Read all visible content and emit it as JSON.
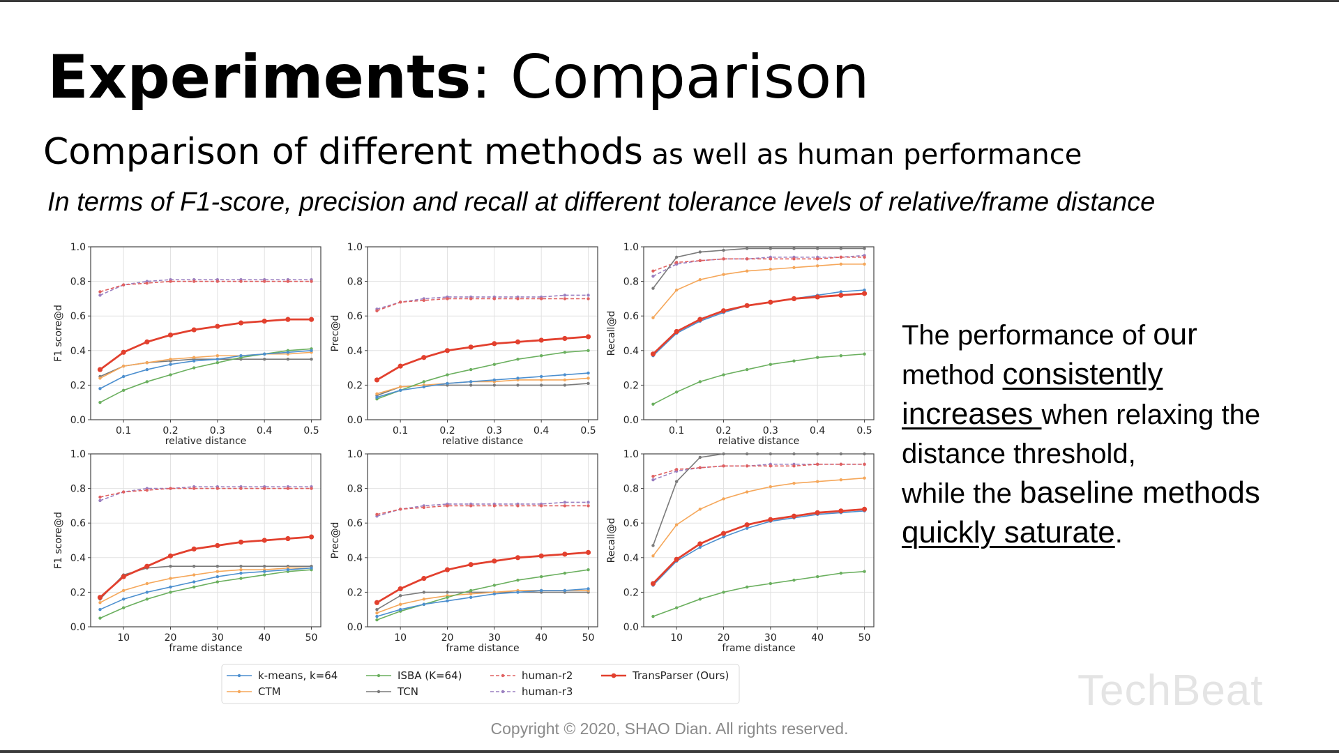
{
  "slide": {
    "title_bold": "Experiments",
    "title_rest": ": Comparison",
    "subtitle_main": "Comparison of different methods",
    "subtitle_small": " as well as human performance",
    "description": "In terms of F1-score, precision and recall at different tolerance levels of relative/frame distance",
    "side_text": {
      "p1": "The performance of ",
      "p2": "our",
      "p3": "method ",
      "p4": "consistently",
      "p5": "increases ",
      "p6": "when relaxing the distance threshold,",
      "p7": "while the ",
      "p8": "baseline methods",
      "p9": "quickly saturate",
      "p10": "."
    },
    "copyright": "Copyright © 2020, SHAO Dian. All rights reserved.",
    "watermark": "TechBeat"
  },
  "colors": {
    "kmeans": "#4c8fcf",
    "ctm": "#f5a75a",
    "isba": "#6aaf5e",
    "tcn": "#7a7a7a",
    "human_r2": "#e06060",
    "human_r3": "#9a7fc0",
    "transparser": "#e2402e"
  },
  "chart_data": {
    "legend": [
      {
        "key": "kmeans",
        "label": "k-means, k=64",
        "dashed": false
      },
      {
        "key": "ctm",
        "label": "CTM",
        "dashed": false
      },
      {
        "key": "isba",
        "label": "ISBA (K=64)",
        "dashed": false
      },
      {
        "key": "tcn",
        "label": "TCN",
        "dashed": false
      },
      {
        "key": "human_r2",
        "label": "human-r2",
        "dashed": true
      },
      {
        "key": "human_r3",
        "label": "human-r3",
        "dashed": true
      },
      {
        "key": "transparser",
        "label": "TransParser (Ours)",
        "dashed": false
      }
    ],
    "charts": [
      {
        "type": "line",
        "ylabel": "F1 score@d",
        "xlabel": "relative distance",
        "x": [
          0.05,
          0.1,
          0.15,
          0.2,
          0.25,
          0.3,
          0.35,
          0.4,
          0.45,
          0.5
        ],
        "xlim": [
          0.03,
          0.52
        ],
        "xticks": [
          0.1,
          0.2,
          0.3,
          0.4,
          0.5
        ],
        "xtick_labels": [
          "0.1",
          "0.2",
          "0.3",
          "0.4",
          "0.5"
        ],
        "ylim": [
          0,
          1
        ],
        "yticks": [
          0.0,
          0.2,
          0.4,
          0.6,
          0.8,
          1.0
        ],
        "ytick_labels": [
          "0.0",
          "0.2",
          "0.4",
          "0.6",
          "0.8",
          "1.0"
        ],
        "series": [
          {
            "key": "kmeans",
            "values": [
              0.18,
              0.25,
              0.29,
              0.32,
              0.34,
              0.35,
              0.37,
              0.38,
              0.39,
              0.4
            ]
          },
          {
            "key": "ctm",
            "values": [
              0.24,
              0.31,
              0.33,
              0.35,
              0.36,
              0.37,
              0.37,
              0.38,
              0.38,
              0.39
            ]
          },
          {
            "key": "isba",
            "values": [
              0.1,
              0.17,
              0.22,
              0.26,
              0.3,
              0.33,
              0.36,
              0.38,
              0.4,
              0.41
            ]
          },
          {
            "key": "tcn",
            "values": [
              0.25,
              0.31,
              0.33,
              0.34,
              0.35,
              0.35,
              0.35,
              0.35,
              0.35,
              0.35
            ]
          },
          {
            "key": "human_r2",
            "values": [
              0.74,
              0.78,
              0.79,
              0.8,
              0.8,
              0.8,
              0.8,
              0.8,
              0.8,
              0.8
            ]
          },
          {
            "key": "human_r3",
            "values": [
              0.72,
              0.78,
              0.8,
              0.81,
              0.81,
              0.81,
              0.81,
              0.81,
              0.81,
              0.81
            ]
          },
          {
            "key": "transparser",
            "values": [
              0.29,
              0.39,
              0.45,
              0.49,
              0.52,
              0.54,
              0.56,
              0.57,
              0.58,
              0.58
            ]
          }
        ]
      },
      {
        "type": "line",
        "ylabel": "Prec@d",
        "xlabel": "relative distance",
        "x": [
          0.05,
          0.1,
          0.15,
          0.2,
          0.25,
          0.3,
          0.35,
          0.4,
          0.45,
          0.5
        ],
        "xlim": [
          0.03,
          0.52
        ],
        "xticks": [
          0.1,
          0.2,
          0.3,
          0.4,
          0.5
        ],
        "xtick_labels": [
          "0.1",
          "0.2",
          "0.3",
          "0.4",
          "0.5"
        ],
        "ylim": [
          0,
          1
        ],
        "yticks": [
          0.0,
          0.2,
          0.4,
          0.6,
          0.8,
          1.0
        ],
        "ytick_labels": [
          "0.0",
          "0.2",
          "0.4",
          "0.6",
          "0.8",
          "1.0"
        ],
        "series": [
          {
            "key": "kmeans",
            "values": [
              0.13,
              0.17,
              0.19,
              0.21,
              0.22,
              0.23,
              0.24,
              0.25,
              0.26,
              0.27
            ]
          },
          {
            "key": "ctm",
            "values": [
              0.15,
              0.19,
              0.2,
              0.21,
              0.22,
              0.22,
              0.23,
              0.23,
              0.23,
              0.24
            ]
          },
          {
            "key": "isba",
            "values": [
              0.12,
              0.17,
              0.22,
              0.26,
              0.29,
              0.32,
              0.35,
              0.37,
              0.39,
              0.4
            ]
          },
          {
            "key": "tcn",
            "values": [
              0.14,
              0.19,
              0.2,
              0.2,
              0.2,
              0.2,
              0.2,
              0.2,
              0.2,
              0.21
            ]
          },
          {
            "key": "human_r2",
            "values": [
              0.63,
              0.68,
              0.69,
              0.7,
              0.7,
              0.7,
              0.7,
              0.7,
              0.7,
              0.7
            ]
          },
          {
            "key": "human_r3",
            "values": [
              0.64,
              0.68,
              0.7,
              0.71,
              0.71,
              0.71,
              0.71,
              0.71,
              0.72,
              0.72
            ]
          },
          {
            "key": "transparser",
            "values": [
              0.23,
              0.31,
              0.36,
              0.4,
              0.42,
              0.44,
              0.45,
              0.46,
              0.47,
              0.48
            ]
          }
        ]
      },
      {
        "type": "line",
        "ylabel": "Recall@d",
        "xlabel": "relative distance",
        "x": [
          0.05,
          0.1,
          0.15,
          0.2,
          0.25,
          0.3,
          0.35,
          0.4,
          0.45,
          0.5
        ],
        "xlim": [
          0.03,
          0.52
        ],
        "xticks": [
          0.1,
          0.2,
          0.3,
          0.4,
          0.5
        ],
        "xtick_labels": [
          "0.1",
          "0.2",
          "0.3",
          "0.4",
          "0.5"
        ],
        "ylim": [
          0,
          1
        ],
        "yticks": [
          0.0,
          0.2,
          0.4,
          0.6,
          0.8,
          1.0
        ],
        "ytick_labels": [
          "0.0",
          "0.2",
          "0.4",
          "0.6",
          "0.8",
          "1.0"
        ],
        "series": [
          {
            "key": "kmeans",
            "values": [
              0.37,
              0.5,
              0.57,
              0.62,
              0.66,
              0.68,
              0.7,
              0.72,
              0.74,
              0.75
            ]
          },
          {
            "key": "ctm",
            "values": [
              0.59,
              0.75,
              0.81,
              0.84,
              0.86,
              0.87,
              0.88,
              0.89,
              0.9,
              0.9
            ]
          },
          {
            "key": "isba",
            "values": [
              0.09,
              0.16,
              0.22,
              0.26,
              0.29,
              0.32,
              0.34,
              0.36,
              0.37,
              0.38
            ]
          },
          {
            "key": "tcn",
            "values": [
              0.76,
              0.94,
              0.97,
              0.98,
              0.99,
              0.99,
              0.99,
              0.99,
              0.99,
              0.99
            ]
          },
          {
            "key": "human_r2",
            "values": [
              0.86,
              0.91,
              0.92,
              0.93,
              0.93,
              0.93,
              0.93,
              0.93,
              0.94,
              0.94
            ]
          },
          {
            "key": "human_r3",
            "values": [
              0.83,
              0.9,
              0.92,
              0.93,
              0.93,
              0.94,
              0.94,
              0.94,
              0.94,
              0.95
            ]
          },
          {
            "key": "transparser",
            "values": [
              0.38,
              0.51,
              0.58,
              0.63,
              0.66,
              0.68,
              0.7,
              0.71,
              0.72,
              0.73
            ]
          }
        ]
      },
      {
        "type": "line",
        "ylabel": "F1 score@d",
        "xlabel": "frame distance",
        "x": [
          5,
          10,
          15,
          20,
          25,
          30,
          35,
          40,
          45,
          50
        ],
        "xlim": [
          3,
          52
        ],
        "xticks": [
          10,
          20,
          30,
          40,
          50
        ],
        "xtick_labels": [
          "10",
          "20",
          "30",
          "40",
          "50"
        ],
        "ylim": [
          0,
          1
        ],
        "yticks": [
          0.0,
          0.2,
          0.4,
          0.6,
          0.8,
          1.0
        ],
        "ytick_labels": [
          "0.0",
          "0.2",
          "0.4",
          "0.6",
          "0.8",
          "1.0"
        ],
        "series": [
          {
            "key": "kmeans",
            "values": [
              0.1,
              0.16,
              0.2,
              0.23,
              0.26,
              0.29,
              0.31,
              0.32,
              0.33,
              0.34
            ]
          },
          {
            "key": "ctm",
            "values": [
              0.14,
              0.21,
              0.25,
              0.28,
              0.3,
              0.32,
              0.33,
              0.33,
              0.34,
              0.34
            ]
          },
          {
            "key": "isba",
            "values": [
              0.05,
              0.11,
              0.16,
              0.2,
              0.23,
              0.26,
              0.28,
              0.3,
              0.32,
              0.33
            ]
          },
          {
            "key": "tcn",
            "values": [
              0.16,
              0.3,
              0.34,
              0.35,
              0.35,
              0.35,
              0.35,
              0.35,
              0.35,
              0.35
            ]
          },
          {
            "key": "human_r2",
            "values": [
              0.75,
              0.78,
              0.79,
              0.8,
              0.8,
              0.8,
              0.8,
              0.8,
              0.8,
              0.8
            ]
          },
          {
            "key": "human_r3",
            "values": [
              0.73,
              0.78,
              0.8,
              0.8,
              0.81,
              0.81,
              0.81,
              0.81,
              0.81,
              0.81
            ]
          },
          {
            "key": "transparser",
            "values": [
              0.17,
              0.29,
              0.35,
              0.41,
              0.45,
              0.47,
              0.49,
              0.5,
              0.51,
              0.52
            ]
          }
        ]
      },
      {
        "type": "line",
        "ylabel": "Prec@d",
        "xlabel": "frame distance",
        "x": [
          5,
          10,
          15,
          20,
          25,
          30,
          35,
          40,
          45,
          50
        ],
        "xlim": [
          3,
          52
        ],
        "xticks": [
          10,
          20,
          30,
          40,
          50
        ],
        "xtick_labels": [
          "10",
          "20",
          "30",
          "40",
          "50"
        ],
        "ylim": [
          0,
          1
        ],
        "yticks": [
          0.0,
          0.2,
          0.4,
          0.6,
          0.8,
          1.0
        ],
        "ytick_labels": [
          "0.0",
          "0.2",
          "0.4",
          "0.6",
          "0.8",
          "1.0"
        ],
        "series": [
          {
            "key": "kmeans",
            "values": [
              0.06,
              0.1,
              0.13,
              0.15,
              0.17,
              0.19,
              0.2,
              0.21,
              0.21,
              0.22
            ]
          },
          {
            "key": "ctm",
            "values": [
              0.08,
              0.13,
              0.16,
              0.18,
              0.19,
              0.2,
              0.21,
              0.21,
              0.21,
              0.21
            ]
          },
          {
            "key": "isba",
            "values": [
              0.04,
              0.09,
              0.13,
              0.17,
              0.21,
              0.24,
              0.27,
              0.29,
              0.31,
              0.33
            ]
          },
          {
            "key": "tcn",
            "values": [
              0.1,
              0.18,
              0.2,
              0.2,
              0.2,
              0.2,
              0.2,
              0.2,
              0.2,
              0.2
            ]
          },
          {
            "key": "human_r2",
            "values": [
              0.65,
              0.68,
              0.69,
              0.7,
              0.7,
              0.7,
              0.7,
              0.7,
              0.7,
              0.7
            ]
          },
          {
            "key": "human_r3",
            "values": [
              0.64,
              0.68,
              0.7,
              0.71,
              0.71,
              0.71,
              0.71,
              0.71,
              0.72,
              0.72
            ]
          },
          {
            "key": "transparser",
            "values": [
              0.14,
              0.22,
              0.28,
              0.33,
              0.36,
              0.38,
              0.4,
              0.41,
              0.42,
              0.43
            ]
          }
        ]
      },
      {
        "type": "line",
        "ylabel": "Recall@d",
        "xlabel": "frame distance",
        "x": [
          5,
          10,
          15,
          20,
          25,
          30,
          35,
          40,
          45,
          50
        ],
        "xlim": [
          3,
          52
        ],
        "xticks": [
          10,
          20,
          30,
          40,
          50
        ],
        "xtick_labels": [
          "10",
          "20",
          "30",
          "40",
          "50"
        ],
        "ylim": [
          0,
          1
        ],
        "yticks": [
          0.0,
          0.2,
          0.4,
          0.6,
          0.8,
          1.0
        ],
        "ytick_labels": [
          "0.0",
          "0.2",
          "0.4",
          "0.6",
          "0.8",
          "1.0"
        ],
        "series": [
          {
            "key": "kmeans",
            "values": [
              0.24,
              0.38,
              0.46,
              0.52,
              0.57,
              0.61,
              0.63,
              0.65,
              0.66,
              0.67
            ]
          },
          {
            "key": "ctm",
            "values": [
              0.41,
              0.59,
              0.68,
              0.74,
              0.78,
              0.81,
              0.83,
              0.84,
              0.85,
              0.86
            ]
          },
          {
            "key": "isba",
            "values": [
              0.06,
              0.11,
              0.16,
              0.2,
              0.23,
              0.25,
              0.27,
              0.29,
              0.31,
              0.32
            ]
          },
          {
            "key": "tcn",
            "values": [
              0.47,
              0.84,
              0.98,
              1.0,
              1.0,
              1.0,
              1.0,
              1.0,
              1.0,
              1.0
            ]
          },
          {
            "key": "human_r2",
            "values": [
              0.87,
              0.91,
              0.92,
              0.93,
              0.93,
              0.93,
              0.93,
              0.94,
              0.94,
              0.94
            ]
          },
          {
            "key": "human_r3",
            "values": [
              0.85,
              0.9,
              0.92,
              0.93,
              0.93,
              0.94,
              0.94,
              0.94,
              0.94,
              0.94
            ]
          },
          {
            "key": "transparser",
            "values": [
              0.25,
              0.39,
              0.48,
              0.54,
              0.59,
              0.62,
              0.64,
              0.66,
              0.67,
              0.68
            ]
          }
        ]
      }
    ]
  }
}
